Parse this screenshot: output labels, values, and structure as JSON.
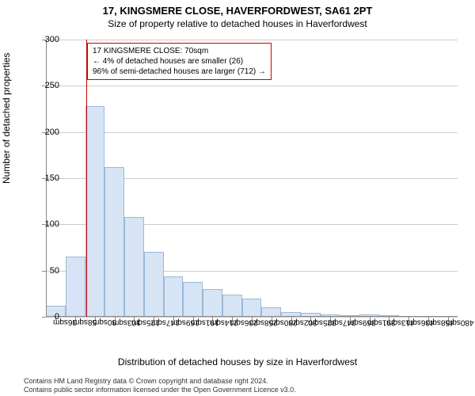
{
  "title_line1": "17, KINGSMERE CLOSE, HAVERFORDWEST, SA61 2PT",
  "title_line2": "Size of property relative to detached houses in Haverfordwest",
  "y_axis_label": "Number of detached properties",
  "x_axis_label": "Distribution of detached houses by size in Haverfordwest",
  "chart": {
    "type": "histogram",
    "ylim": [
      0,
      300
    ],
    "yticks": [
      0,
      50,
      100,
      150,
      200,
      250,
      300
    ],
    "x_categories": [
      "36sqm",
      "58sqm",
      "80sqm",
      "103sqm",
      "125sqm",
      "147sqm",
      "169sqm",
      "191sqm",
      "214sqm",
      "236sqm",
      "258sqm",
      "280sqm",
      "302sqm",
      "325sqm",
      "347sqm",
      "369sqm",
      "391sqm",
      "413sqm",
      "436sqm",
      "458sqm",
      "480sqm"
    ],
    "values": [
      12,
      65,
      228,
      162,
      108,
      70,
      44,
      38,
      30,
      24,
      20,
      10,
      5,
      4,
      3,
      2,
      3,
      2,
      1,
      1,
      1
    ],
    "bar_fill": "#d6e4f5",
    "bar_stroke": "#9cb7d8",
    "grid_color": "#cccccc",
    "background_color": "#ffffff",
    "axis_color": "#888888",
    "bar_width_ratio": 1.0,
    "marker_index": 1.55,
    "marker_color": "#cc0000"
  },
  "annotation": {
    "line1": "17 KINGSMERE CLOSE: 70sqm",
    "line2": "← 4% of detached houses are smaller (26)",
    "line3": "96% of semi-detached houses are larger (712) →",
    "border_color": "#cc0000",
    "background": "#ffffff",
    "font_size": 10
  },
  "footer_line1": "Contains HM Land Registry data © Crown copyright and database right 2024.",
  "footer_line2": "Contains public sector information licensed under the Open Government Licence v3.0."
}
